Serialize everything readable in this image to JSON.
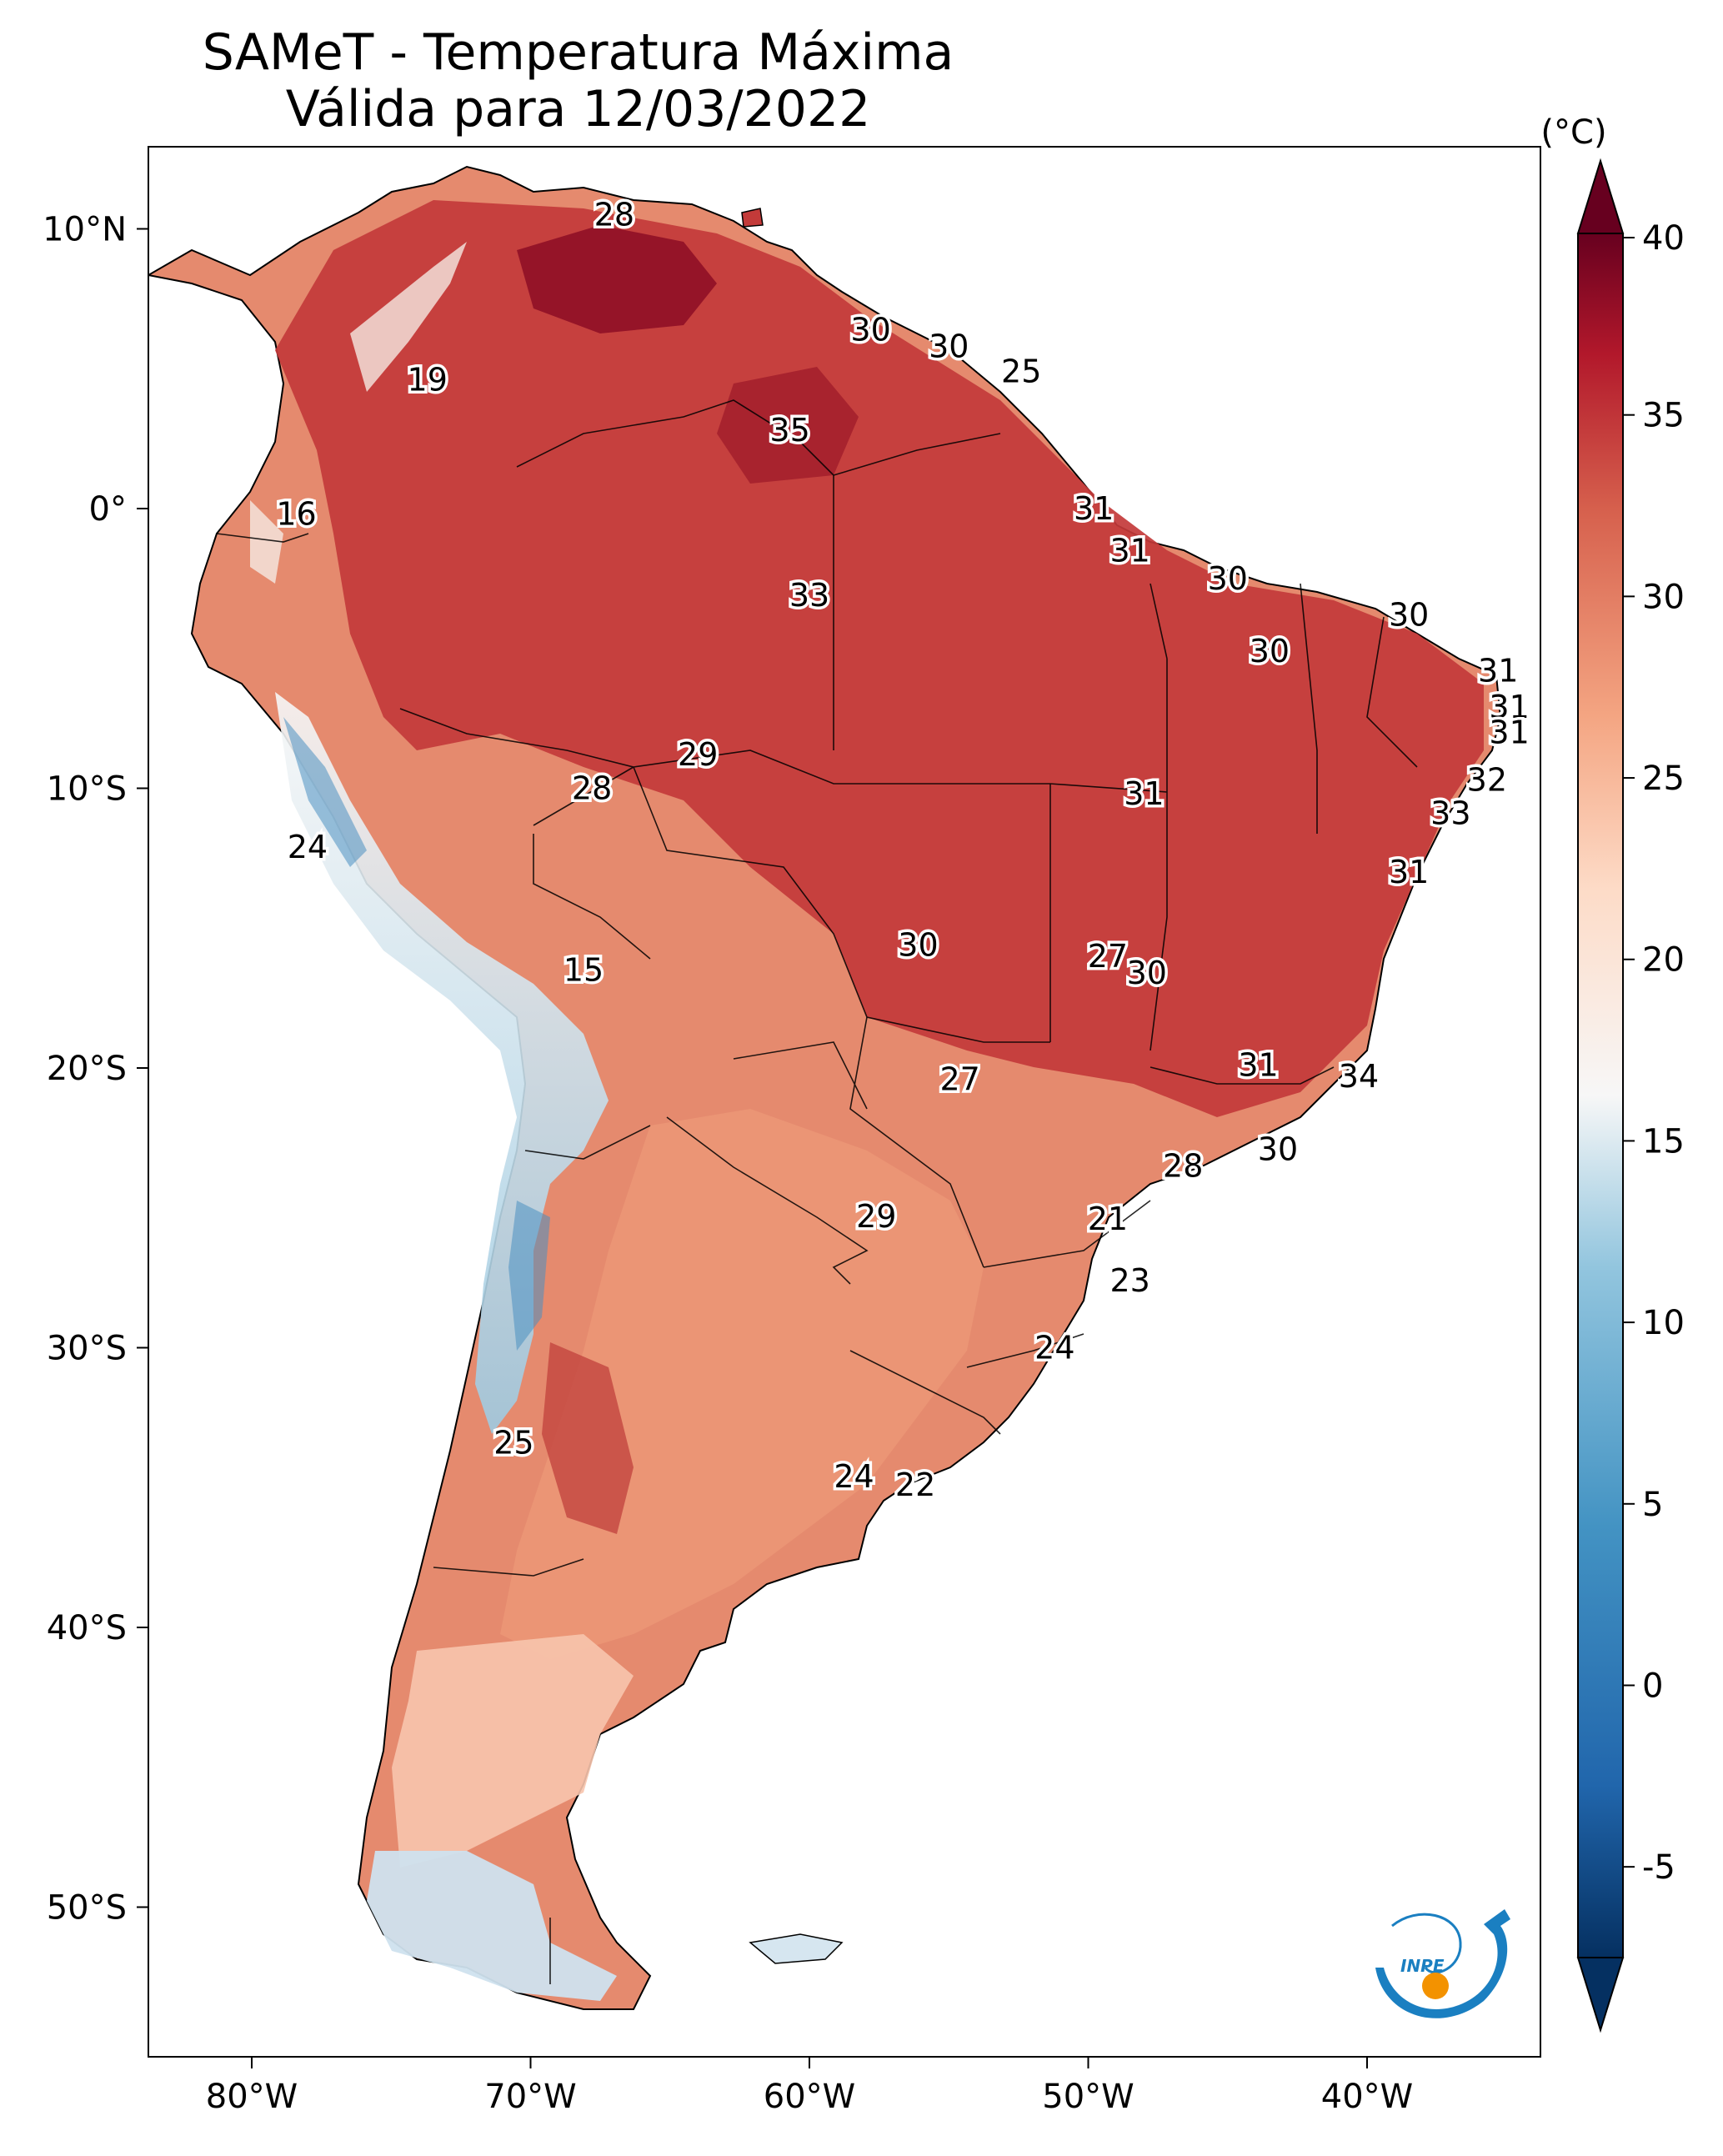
{
  "title": {
    "line1": "SAMeT - Temperatura Máxima",
    "line2": "Válida para 12/03/2022"
  },
  "axes": {
    "lon_ticks": [
      "80°W",
      "70°W",
      "60°W",
      "50°W",
      "40°W"
    ],
    "lat_ticks": [
      "10°N",
      "0°",
      "10°S",
      "20°S",
      "30°S",
      "40°S",
      "50°S"
    ]
  },
  "colorbar": {
    "unit": "(°C)",
    "ticks": [
      "40",
      "35",
      "30",
      "25",
      "20",
      "15",
      "10",
      "5",
      "0",
      "-5"
    ],
    "colormap": "RdBu_r",
    "extend": "both"
  },
  "colors": {
    "hot_dark": "#67001f",
    "hot": "#c23639",
    "warm": "#f4a582",
    "neutral": "#f7f7f7",
    "cool": "#92c5de",
    "cold": "#2166ac",
    "cold_dark": "#053061",
    "logo_blue": "#1a7fc1",
    "logo_orange": "#f39200"
  },
  "logo": {
    "text": "INPE"
  },
  "point_labels": [
    {
      "lon": -67.0,
      "lat": 10.5,
      "value": "28"
    },
    {
      "lon": -57.8,
      "lat": 6.4,
      "value": "30"
    },
    {
      "lon": -55.0,
      "lat": 5.8,
      "value": "30"
    },
    {
      "lon": -52.4,
      "lat": 4.9,
      "value": "25"
    },
    {
      "lon": -73.7,
      "lat": 4.6,
      "value": "19"
    },
    {
      "lon": -60.7,
      "lat": 2.8,
      "value": "35"
    },
    {
      "lon": -78.4,
      "lat": -0.2,
      "value": "16"
    },
    {
      "lon": -49.8,
      "lat": 0.0,
      "value": "31"
    },
    {
      "lon": -48.5,
      "lat": -1.5,
      "value": "31"
    },
    {
      "lon": -60.0,
      "lat": -3.1,
      "value": "33"
    },
    {
      "lon": -45.0,
      "lat": -2.5,
      "value": "30"
    },
    {
      "lon": -38.5,
      "lat": -3.8,
      "value": "30"
    },
    {
      "lon": -43.5,
      "lat": -5.1,
      "value": "30"
    },
    {
      "lon": -35.3,
      "lat": -5.8,
      "value": "31"
    },
    {
      "lon": -34.9,
      "lat": -7.1,
      "value": "31"
    },
    {
      "lon": -34.9,
      "lat": -8.0,
      "value": "31"
    },
    {
      "lon": -64.0,
      "lat": -8.8,
      "value": "29"
    },
    {
      "lon": -67.8,
      "lat": -10.0,
      "value": "28"
    },
    {
      "lon": -48.0,
      "lat": -10.2,
      "value": "31"
    },
    {
      "lon": -35.7,
      "lat": -9.7,
      "value": "32"
    },
    {
      "lon": -37.0,
      "lat": -10.9,
      "value": "33"
    },
    {
      "lon": -78.0,
      "lat": -12.1,
      "value": "24"
    },
    {
      "lon": -38.5,
      "lat": -13.0,
      "value": "31"
    },
    {
      "lon": -68.1,
      "lat": -16.5,
      "value": "15"
    },
    {
      "lon": -56.1,
      "lat": -15.6,
      "value": "30"
    },
    {
      "lon": -49.3,
      "lat": -16.0,
      "value": "27"
    },
    {
      "lon": -47.9,
      "lat": -16.6,
      "value": "30"
    },
    {
      "lon": -54.6,
      "lat": -20.4,
      "value": "27"
    },
    {
      "lon": -43.9,
      "lat": -19.9,
      "value": "31"
    },
    {
      "lon": -40.3,
      "lat": -20.3,
      "value": "34"
    },
    {
      "lon": -43.2,
      "lat": -22.9,
      "value": "30"
    },
    {
      "lon": -46.6,
      "lat": -23.5,
      "value": "28"
    },
    {
      "lon": -49.3,
      "lat": -25.4,
      "value": "21"
    },
    {
      "lon": -57.6,
      "lat": -25.3,
      "value": "29"
    },
    {
      "lon": -48.5,
      "lat": -27.6,
      "value": "23"
    },
    {
      "lon": -51.2,
      "lat": -30.0,
      "value": "24"
    },
    {
      "lon": -70.6,
      "lat": -33.4,
      "value": "25"
    },
    {
      "lon": -58.4,
      "lat": -34.6,
      "value": "24"
    },
    {
      "lon": -56.2,
      "lat": -34.9,
      "value": "22"
    }
  ]
}
